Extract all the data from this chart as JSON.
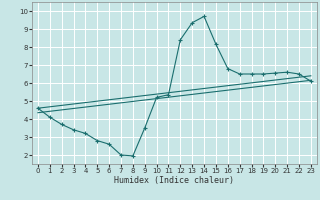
{
  "xlabel": "Humidex (Indice chaleur)",
  "xlim": [
    -0.5,
    23.5
  ],
  "ylim": [
    1.5,
    10.5
  ],
  "xticks": [
    0,
    1,
    2,
    3,
    4,
    5,
    6,
    7,
    8,
    9,
    10,
    11,
    12,
    13,
    14,
    15,
    16,
    17,
    18,
    19,
    20,
    21,
    22,
    23
  ],
  "yticks": [
    2,
    3,
    4,
    5,
    6,
    7,
    8,
    9,
    10
  ],
  "bg_color": "#c8e6e6",
  "grid_color": "#ffffff",
  "line_color": "#1a6e6e",
  "line1_x": [
    0,
    1,
    2,
    3,
    4,
    5,
    6,
    7,
    8,
    9,
    10,
    11,
    12,
    13,
    14,
    15,
    16,
    17,
    18,
    19,
    20,
    21,
    22,
    23
  ],
  "line1_y": [
    4.6,
    4.1,
    3.7,
    3.4,
    3.2,
    2.8,
    2.6,
    2.0,
    1.95,
    3.5,
    5.2,
    5.35,
    8.4,
    9.35,
    9.7,
    8.15,
    6.8,
    6.5,
    6.5,
    6.5,
    6.55,
    6.6,
    6.5,
    6.1
  ],
  "line2_x": [
    0,
    23
  ],
  "line2_y": [
    4.35,
    6.15
  ],
  "line3_x": [
    0,
    23
  ],
  "line3_y": [
    4.6,
    6.4
  ]
}
